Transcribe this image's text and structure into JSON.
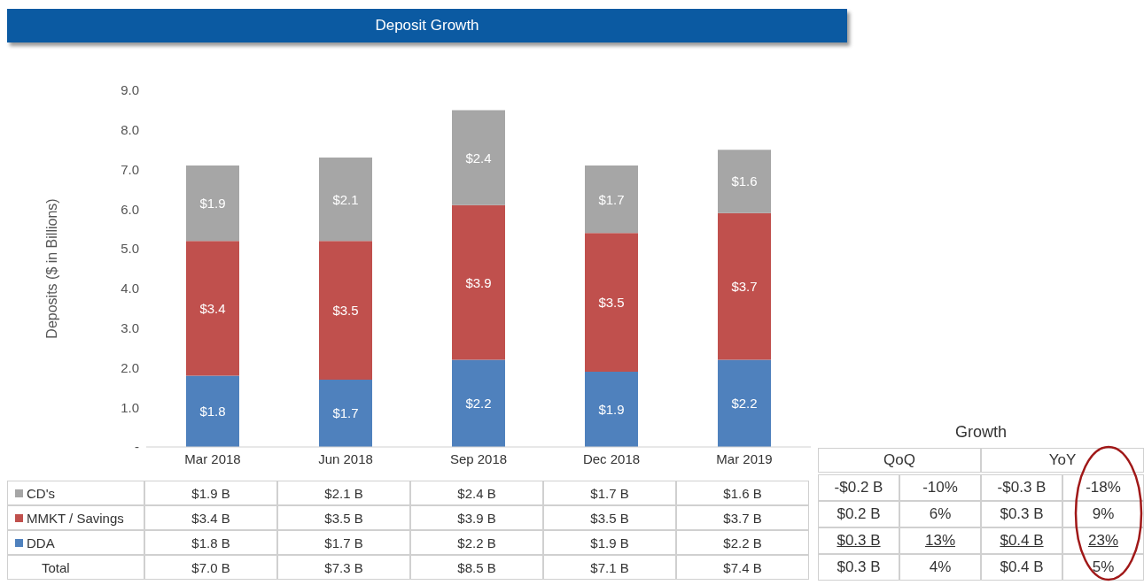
{
  "chart_data": {
    "type": "bar",
    "title": "Deposit Growth",
    "ylabel": "Deposits ($ in Billions)",
    "stacked": true,
    "legend": "bottom",
    "categories": [
      "Mar 2018",
      "Jun 2018",
      "Sep 2018",
      "Dec 2018",
      "Mar 2019"
    ],
    "series": [
      {
        "name": "DDA",
        "color": "#4f81bd",
        "values": [
          1.8,
          1.7,
          2.2,
          1.9,
          2.2
        ],
        "value_labels": [
          "$1.8",
          "$1.7",
          "$2.2",
          "$1.9",
          "$2.2"
        ]
      },
      {
        "name": "MMKT / Savings",
        "color": "#c0504d",
        "values": [
          3.4,
          3.5,
          3.9,
          3.5,
          3.7
        ],
        "value_labels": [
          "$3.4",
          "$3.5",
          "$3.9",
          "$3.5",
          "$3.7"
        ]
      },
      {
        "name": "CD's",
        "color": "#a6a6a6",
        "values": [
          1.9,
          2.1,
          2.4,
          1.7,
          1.6
        ],
        "value_labels": [
          "$1.9",
          "$2.1",
          "$2.4",
          "$1.7",
          "$1.6"
        ]
      }
    ],
    "ylim": [
      0,
      9
    ],
    "yticks": [
      {
        "value": 0,
        "label": "-"
      },
      {
        "value": 1,
        "label": "1.0"
      },
      {
        "value": 2,
        "label": "2.0"
      },
      {
        "value": 3,
        "label": "3.0"
      },
      {
        "value": 4,
        "label": "4.0"
      },
      {
        "value": 5,
        "label": "5.0"
      },
      {
        "value": 6,
        "label": "6.0"
      },
      {
        "value": 7,
        "label": "7.0"
      },
      {
        "value": 8,
        "label": "8.0"
      },
      {
        "value": 9,
        "label": "9.0"
      }
    ],
    "annotations": [
      "Total",
      "$7.0 B",
      "$7.3 B",
      "$8.5 B",
      "$7.1 B",
      "$7.4 B",
      "$1.8 B",
      "$1.7 B",
      "$2.2 B",
      "$1.9 B",
      "$2.2 B",
      "$3.4 B",
      "$3.5 B",
      "$3.9 B",
      "$3.5 B",
      "$3.7 B",
      "$1.9 B",
      "$2.1 B",
      "$2.4 B",
      "$1.7 B",
      "$1.6 B",
      "Growth",
      "QoQ",
      "YoY",
      "-$0.2 B",
      "-10%",
      "-$0.3 B",
      "-18%",
      "$0.2 B",
      "6%",
      "$0.3 B",
      "9%",
      "$0.3 B",
      "13%",
      "$0.4 B",
      "23%",
      "$0.3 B",
      "4%",
      "$0.4 B",
      "5%"
    ]
  }
}
